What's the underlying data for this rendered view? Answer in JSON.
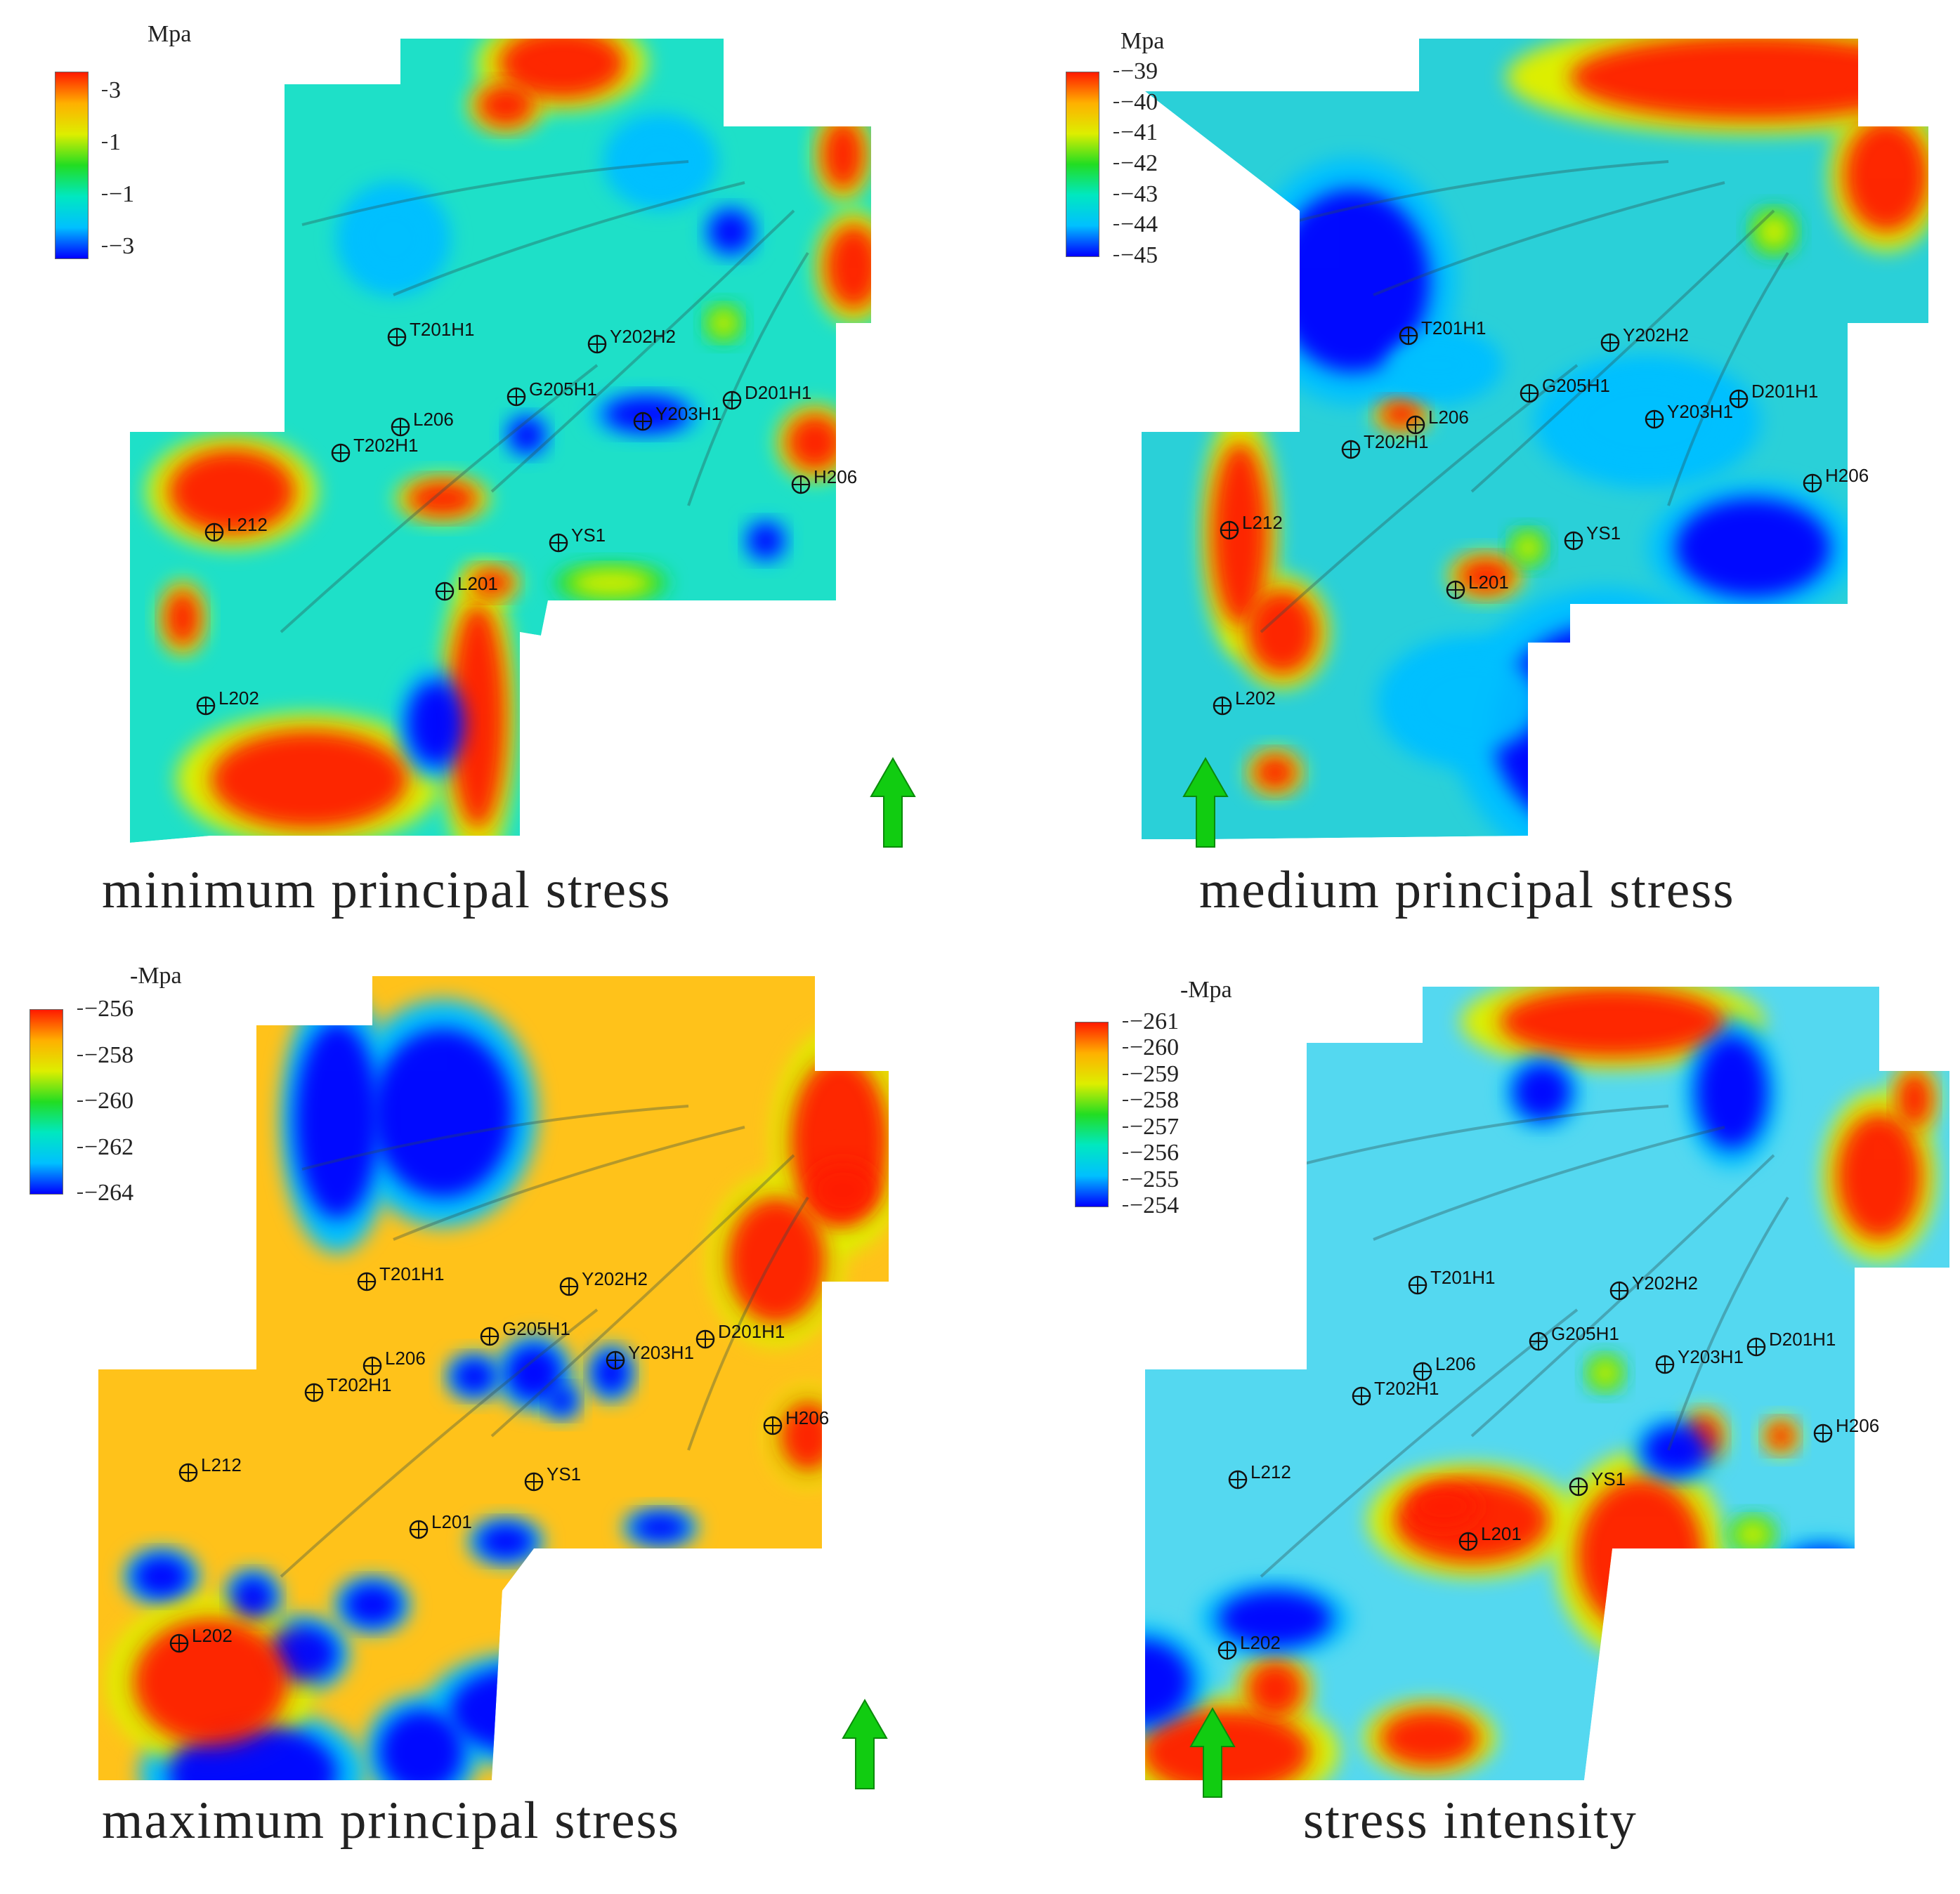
{
  "colors": {
    "scale": [
      "#0000ff",
      "#00c0ff",
      "#00e8c0",
      "#22dd22",
      "#ddee00",
      "#ffb000",
      "#ff1a00"
    ],
    "arrow": "#11cc11",
    "well_marker": "#111111"
  },
  "icons": {
    "north_arrow": "up-arrow-icon",
    "well_marker": "crosshair-circle-icon"
  },
  "panels": [
    {
      "caption": "minimum principal stress",
      "unit": "Mpa",
      "legend_ticks": [
        "3",
        "1",
        "−1",
        "−3"
      ],
      "base": "#1ee0c8",
      "wells": [
        "T201H1",
        "Y202H2",
        "G205H1",
        "D201H1",
        "L206",
        "Y203H1",
        "T202H1",
        "H206",
        "L212",
        "YS1",
        "L201",
        "L202"
      ]
    },
    {
      "caption": "medium principal stress",
      "unit": "Mpa",
      "legend_ticks": [
        "−39",
        "−40",
        "−41",
        "−42",
        "−43",
        "−44",
        "−45"
      ],
      "base": "#2ad0d8",
      "wells": [
        "T201H1",
        "Y202H2",
        "G205H1",
        "D201H1",
        "L206",
        "Y203H1",
        "T202H1",
        "H206",
        "L212",
        "YS1",
        "L201",
        "L202"
      ]
    },
    {
      "caption": "maximum principal stress",
      "unit": "-Mpa",
      "legend_ticks": [
        "−256",
        "−258",
        "−260",
        "−262",
        "−264"
      ],
      "base": "#ffc21a",
      "wells": [
        "T201H1",
        "Y202H2",
        "G205H1",
        "D201H1",
        "L206",
        "Y203H1",
        "T202H1",
        "H206",
        "L212",
        "YS1",
        "L201",
        "L202"
      ]
    },
    {
      "caption": "stress intensity",
      "unit": "-Mpa",
      "legend_ticks": [
        "−261",
        "−260",
        "−259",
        "−258",
        "−257",
        "−256",
        "−255",
        "−254"
      ],
      "base": "#54d8f0",
      "wells": [
        "T201H1",
        "Y202H2",
        "G205H1",
        "D201H1",
        "L206",
        "Y203H1",
        "T202H1",
        "H206",
        "L212",
        "YS1",
        "L201",
        "L202"
      ]
    }
  ]
}
